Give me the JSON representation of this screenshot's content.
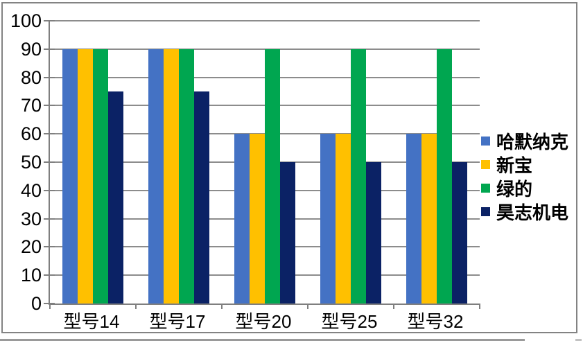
{
  "chart_data": {
    "type": "bar",
    "title": "",
    "xlabel": "",
    "ylabel": "",
    "categories": [
      "型号14",
      "型号17",
      "型号20",
      "型号25",
      "型号32"
    ],
    "series": [
      {
        "name": "哈默纳克",
        "color": "#4472C4",
        "values": [
          90,
          90,
          60,
          60,
          60
        ]
      },
      {
        "name": "新宝",
        "color": "#FFC000",
        "values": [
          90,
          90,
          60,
          60,
          60
        ]
      },
      {
        "name": "绿的",
        "color": "#00A650",
        "values": [
          90,
          90,
          90,
          90,
          90
        ]
      },
      {
        "name": "昊志机电",
        "color": "#0B2265",
        "values": [
          75,
          75,
          50,
          50,
          50
        ]
      }
    ],
    "ylim": [
      0,
      100
    ],
    "yticks": [
      0,
      10,
      20,
      30,
      40,
      50,
      60,
      70,
      80,
      90,
      100
    ],
    "grid": true,
    "legend_position": "right"
  },
  "colors": {
    "gridline": "#8C8C8C",
    "axis": "#7F7F7F",
    "frame_border": "#838383",
    "background": "#FFFFFF",
    "text": "#000000",
    "bottom_divider": "#9A9A9A",
    "bottom_stub": "#C2C2C2"
  }
}
